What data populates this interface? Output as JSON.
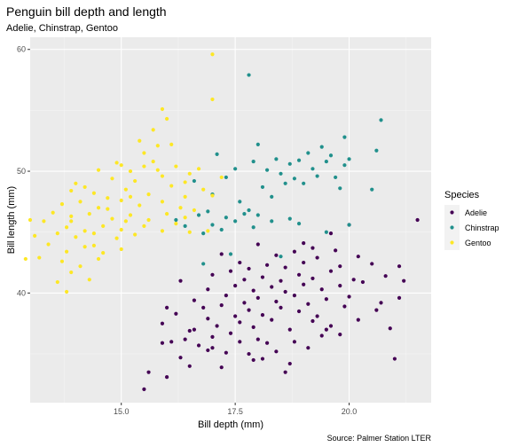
{
  "chart_data": {
    "type": "scatter",
    "title": "Penguin bill depth and length",
    "subtitle": "Adelie, Chinstrap, Gentoo",
    "xlabel": "Bill depth (mm)",
    "ylabel": "Bill length (mm)",
    "caption": "Source: Palmer Station LTER",
    "xlim": [
      13.0,
      21.8
    ],
    "ylim": [
      31.0,
      61.0
    ],
    "x_ticks": [
      15.0,
      17.5,
      20.0
    ],
    "x_tick_labels": [
      "15.0",
      "17.5",
      "20.0"
    ],
    "y_ticks": [
      40,
      50,
      60
    ],
    "y_tick_labels": [
      "40",
      "50",
      "60"
    ],
    "grid": true,
    "legend": {
      "title": "Species",
      "position": "right"
    },
    "series": [
      {
        "name": "Adelie",
        "color": "#440154",
        "points": [
          [
            15.5,
            32.1
          ],
          [
            16.0,
            33.1
          ],
          [
            15.6,
            33.5
          ],
          [
            16.5,
            34.0
          ],
          [
            17.2,
            33.9
          ],
          [
            18.6,
            33.5
          ],
          [
            17.9,
            34.5
          ],
          [
            18.1,
            34.6
          ],
          [
            17.8,
            35.0
          ],
          [
            16.9,
            35.3
          ],
          [
            18.4,
            35.2
          ],
          [
            17.0,
            35.5
          ],
          [
            15.9,
            35.9
          ],
          [
            16.7,
            35.7
          ],
          [
            18.2,
            35.9
          ],
          [
            19.1,
            35.5
          ],
          [
            16.1,
            36.0
          ],
          [
            16.4,
            36.2
          ],
          [
            17.0,
            36.4
          ],
          [
            17.4,
            36.7
          ],
          [
            18.0,
            36.2
          ],
          [
            18.8,
            36.0
          ],
          [
            19.4,
            36.5
          ],
          [
            19.8,
            36.6
          ],
          [
            16.6,
            37.0
          ],
          [
            17.1,
            37.3
          ],
          [
            17.6,
            37.6
          ],
          [
            17.9,
            37.2
          ],
          [
            18.3,
            37.8
          ],
          [
            18.7,
            37.0
          ],
          [
            19.2,
            37.7
          ],
          [
            19.6,
            37.3
          ],
          [
            20.2,
            37.8
          ],
          [
            15.9,
            37.5
          ],
          [
            16.9,
            37.9
          ],
          [
            17.5,
            38.1
          ],
          [
            17.8,
            38.6
          ],
          [
            18.1,
            38.2
          ],
          [
            18.5,
            38.8
          ],
          [
            18.9,
            38.5
          ],
          [
            19.3,
            38.1
          ],
          [
            19.9,
            38.9
          ],
          [
            20.6,
            38.6
          ],
          [
            16.2,
            38.3
          ],
          [
            16.8,
            38.8
          ],
          [
            17.2,
            39.0
          ],
          [
            17.7,
            39.2
          ],
          [
            18.0,
            39.6
          ],
          [
            18.4,
            39.3
          ],
          [
            18.8,
            39.8
          ],
          [
            19.1,
            39.1
          ],
          [
            19.5,
            39.5
          ],
          [
            20.0,
            39.7
          ],
          [
            20.7,
            39.2
          ],
          [
            21.1,
            39.6
          ],
          [
            16.6,
            39.4
          ],
          [
            17.3,
            39.8
          ],
          [
            17.9,
            40.2
          ],
          [
            18.3,
            40.5
          ],
          [
            18.6,
            40.1
          ],
          [
            19.0,
            40.7
          ],
          [
            19.4,
            40.3
          ],
          [
            19.8,
            40.6
          ],
          [
            20.3,
            40.9
          ],
          [
            16.9,
            40.3
          ],
          [
            17.5,
            40.6
          ],
          [
            17.7,
            41.1
          ],
          [
            18.1,
            41.3
          ],
          [
            18.5,
            41.0
          ],
          [
            18.9,
            41.5
          ],
          [
            19.2,
            41.2
          ],
          [
            19.6,
            41.8
          ],
          [
            20.1,
            41.1
          ],
          [
            20.8,
            41.4
          ],
          [
            21.2,
            41.0
          ],
          [
            16.3,
            41.0
          ],
          [
            17.0,
            41.5
          ],
          [
            17.4,
            41.8
          ],
          [
            17.8,
            42.0
          ],
          [
            18.2,
            42.3
          ],
          [
            18.6,
            42.1
          ],
          [
            19.0,
            42.5
          ],
          [
            19.3,
            42.9
          ],
          [
            19.8,
            42.2
          ],
          [
            20.5,
            42.4
          ],
          [
            21.1,
            42.2
          ],
          [
            17.6,
            42.5
          ],
          [
            18.4,
            43.1
          ],
          [
            18.8,
            43.4
          ],
          [
            19.2,
            43.7
          ],
          [
            17.2,
            43.2
          ],
          [
            19.7,
            43.5
          ],
          [
            20.2,
            43.0
          ],
          [
            18.0,
            44.0
          ],
          [
            19.0,
            44.1
          ],
          [
            21.5,
            46.0
          ],
          [
            20.0,
            45.6
          ],
          [
            19.6,
            44.9
          ],
          [
            16.5,
            36.9
          ],
          [
            17.3,
            35.1
          ],
          [
            18.7,
            34.2
          ],
          [
            16.3,
            34.7
          ],
          [
            17.6,
            36.0
          ],
          [
            19.5,
            37.0
          ],
          [
            20.9,
            37.1
          ],
          [
            16.0,
            38.8
          ],
          [
            21.0,
            34.6
          ]
        ]
      },
      {
        "name": "Chinstrap",
        "color": "#21908C",
        "points": [
          [
            17.8,
            57.9
          ],
          [
            20.7,
            54.2
          ],
          [
            19.9,
            52.8
          ],
          [
            19.4,
            52.0
          ],
          [
            19.6,
            51.3
          ],
          [
            18.9,
            50.9
          ],
          [
            19.1,
            51.5
          ],
          [
            18.7,
            50.6
          ],
          [
            19.5,
            50.8
          ],
          [
            20.0,
            51.0
          ],
          [
            19.2,
            50.2
          ],
          [
            18.2,
            50.1
          ],
          [
            18.5,
            49.8
          ],
          [
            18.8,
            49.4
          ],
          [
            19.0,
            49.0
          ],
          [
            19.7,
            49.5
          ],
          [
            19.9,
            50.5
          ],
          [
            20.6,
            51.7
          ],
          [
            18.0,
            52.2
          ],
          [
            18.4,
            51.0
          ],
          [
            17.9,
            50.8
          ],
          [
            18.6,
            49.0
          ],
          [
            19.3,
            49.6
          ],
          [
            19.8,
            48.6
          ],
          [
            20.5,
            48.5
          ],
          [
            17.5,
            50.2
          ],
          [
            17.3,
            49.5
          ],
          [
            17.1,
            51.4
          ],
          [
            18.1,
            48.7
          ],
          [
            18.3,
            47.9
          ],
          [
            17.6,
            47.5
          ],
          [
            17.0,
            48.1
          ],
          [
            16.6,
            49.2
          ],
          [
            16.9,
            46.7
          ],
          [
            17.3,
            46.2
          ],
          [
            18.0,
            46.4
          ],
          [
            17.8,
            46.8
          ],
          [
            18.7,
            46.1
          ],
          [
            18.9,
            45.7
          ],
          [
            17.5,
            45.9
          ],
          [
            17.2,
            45.2
          ],
          [
            17.0,
            45.6
          ],
          [
            16.4,
            45.5
          ],
          [
            16.7,
            46.4
          ],
          [
            16.8,
            44.9
          ],
          [
            17.9,
            45.4
          ],
          [
            18.3,
            45.9
          ],
          [
            20.0,
            45.6
          ],
          [
            16.2,
            46.0
          ],
          [
            17.4,
            43.2
          ],
          [
            16.8,
            42.4
          ],
          [
            18.5,
            43.0
          ],
          [
            19.5,
            45.0
          ],
          [
            17.7,
            46.5
          ]
        ]
      },
      {
        "name": "Gentoo",
        "color": "#FDE725",
        "points": [
          [
            17.0,
            59.6
          ],
          [
            17.0,
            55.9
          ],
          [
            15.9,
            55.1
          ],
          [
            16.0,
            54.3
          ],
          [
            15.7,
            53.4
          ],
          [
            15.4,
            52.5
          ],
          [
            15.8,
            52.1
          ],
          [
            16.1,
            52.2
          ],
          [
            15.5,
            51.5
          ],
          [
            15.0,
            50.5
          ],
          [
            14.5,
            50.1
          ],
          [
            15.2,
            50.0
          ],
          [
            15.7,
            50.8
          ],
          [
            16.2,
            50.4
          ],
          [
            16.5,
            49.8
          ],
          [
            15.9,
            49.6
          ],
          [
            15.3,
            49.2
          ],
          [
            14.8,
            49.4
          ],
          [
            14.2,
            48.7
          ],
          [
            13.9,
            48.4
          ],
          [
            14.4,
            48.2
          ],
          [
            15.1,
            48.5
          ],
          [
            15.6,
            48.1
          ],
          [
            16.1,
            48.8
          ],
          [
            16.4,
            49.1
          ],
          [
            16.8,
            48.5
          ],
          [
            14.7,
            47.8
          ],
          [
            14.1,
            47.5
          ],
          [
            13.7,
            47.3
          ],
          [
            14.5,
            47.0
          ],
          [
            15.0,
            47.6
          ],
          [
            15.4,
            47.2
          ],
          [
            15.9,
            47.5
          ],
          [
            16.3,
            47.0
          ],
          [
            16.6,
            46.8
          ],
          [
            17.0,
            48.0
          ],
          [
            13.5,
            46.6
          ],
          [
            13.9,
            46.3
          ],
          [
            14.3,
            46.5
          ],
          [
            14.8,
            46.1
          ],
          [
            15.2,
            46.4
          ],
          [
            15.6,
            46.0
          ],
          [
            16.0,
            46.5
          ],
          [
            16.4,
            46.2
          ],
          [
            13.3,
            45.9
          ],
          [
            13.8,
            45.4
          ],
          [
            14.2,
            45.1
          ],
          [
            14.6,
            45.5
          ],
          [
            15.0,
            45.2
          ],
          [
            15.5,
            45.5
          ],
          [
            15.9,
            45.1
          ],
          [
            16.2,
            45.7
          ],
          [
            13.6,
            44.9
          ],
          [
            14.0,
            44.6
          ],
          [
            14.4,
            44.9
          ],
          [
            14.9,
            44.5
          ],
          [
            15.3,
            44.8
          ],
          [
            13.4,
            44.0
          ],
          [
            13.8,
            43.4
          ],
          [
            14.2,
            43.8
          ],
          [
            14.6,
            43.3
          ],
          [
            15.0,
            43.6
          ],
          [
            13.2,
            42.9
          ],
          [
            13.7,
            42.6
          ],
          [
            14.1,
            42.2
          ],
          [
            14.5,
            42.8
          ],
          [
            13.9,
            41.7
          ],
          [
            14.3,
            41.1
          ],
          [
            13.6,
            40.9
          ],
          [
            13.8,
            40.1
          ],
          [
            13.1,
            44.7
          ],
          [
            12.9,
            42.8
          ],
          [
            13.0,
            46.0
          ],
          [
            14.0,
            49.0
          ],
          [
            15.5,
            50.4
          ],
          [
            15.2,
            47.9
          ],
          [
            16.7,
            50.2
          ],
          [
            17.2,
            49.5
          ],
          [
            14.9,
            50.7
          ],
          [
            15.8,
            50.1
          ],
          [
            16.4,
            47.9
          ],
          [
            14.7,
            46.9
          ],
          [
            13.9,
            45.9
          ],
          [
            15.1,
            45.9
          ],
          [
            14.4,
            43.9
          ],
          [
            16.9,
            45.1
          ],
          [
            16.5,
            45.0
          ]
        ]
      }
    ]
  }
}
